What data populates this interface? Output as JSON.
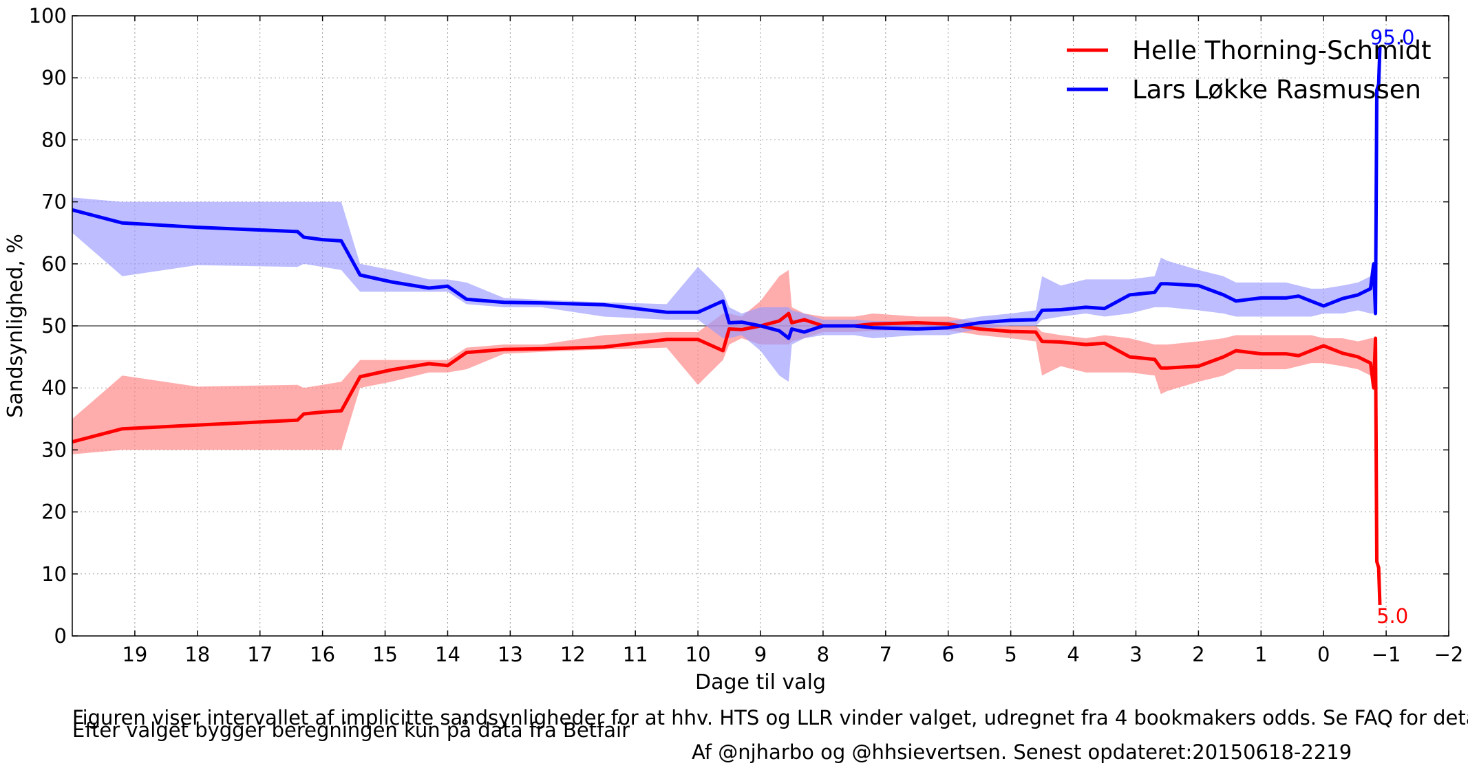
{
  "chart_data": {
    "type": "line",
    "title": "",
    "xlabel": "Dage til valg",
    "ylabel": "Sandsynlighed, %",
    "xlim": [
      20,
      -2
    ],
    "ylim": [
      0,
      100
    ],
    "x_inverted": true,
    "x_ticks": [
      19,
      18,
      17,
      16,
      15,
      14,
      13,
      12,
      11,
      10,
      9,
      8,
      7,
      6,
      5,
      4,
      3,
      2,
      1,
      0,
      -1,
      -2
    ],
    "x_tick_labels": [
      "19",
      "18",
      "17",
      "16",
      "15",
      "14",
      "13",
      "12",
      "11",
      "10",
      "9",
      "8",
      "7",
      "6",
      "5",
      "4",
      "3",
      "2",
      "1",
      "0",
      "−1",
      "−2"
    ],
    "y_ticks": [
      0,
      10,
      20,
      30,
      40,
      50,
      60,
      70,
      80,
      90,
      100
    ],
    "y_tick_labels": [
      "0",
      "10",
      "20",
      "30",
      "40",
      "50",
      "60",
      "70",
      "80",
      "90",
      "100"
    ],
    "grid": true,
    "reference_line": 50,
    "legend_position": "top-right",
    "series": [
      {
        "name": "Helle Thorning-Schmidt",
        "color": "#ff0000",
        "band_color": "#ff8080",
        "x": [
          20,
          19.2,
          18,
          16.4,
          16.3,
          16.0,
          15.7,
          15.4,
          14.9,
          14.3,
          14.0,
          13.7,
          13.1,
          12.5,
          11.5,
          10.5,
          10.0,
          9.6,
          9.5,
          9.3,
          9.0,
          8.7,
          8.55,
          8.5,
          8.3,
          8.0,
          7.5,
          7.2,
          6.5,
          6.0,
          5.5,
          5.0,
          4.6,
          4.5,
          4.2,
          3.8,
          3.5,
          3.1,
          2.7,
          2.6,
          2.5,
          2.0,
          1.6,
          1.4,
          1.0,
          0.6,
          0.4,
          0.2,
          0.0,
          -0.3,
          -0.55,
          -0.75,
          -0.8,
          -0.83,
          -0.85,
          -0.88,
          -0.9
        ],
        "values": [
          31.3,
          33.4,
          34.0,
          34.8,
          35.8,
          36.1,
          36.3,
          41.8,
          42.9,
          43.9,
          43.6,
          45.7,
          46.2,
          46.3,
          46.6,
          47.8,
          47.8,
          46.0,
          49.5,
          49.4,
          50.0,
          50.8,
          52.0,
          50.5,
          51.0,
          50.0,
          50.0,
          50.3,
          50.5,
          50.3,
          49.5,
          49.1,
          49.0,
          47.5,
          47.4,
          47.0,
          47.2,
          45.0,
          44.6,
          43.2,
          43.2,
          43.5,
          45.0,
          46.0,
          45.5,
          45.5,
          45.2,
          46.0,
          46.8,
          45.6,
          45.0,
          44.0,
          40.0,
          48.0,
          12.0,
          11.0,
          5.0
        ],
        "band_low": [
          29.3,
          30.0,
          30.0,
          30.0,
          30.0,
          30.0,
          30.0,
          40.0,
          41.0,
          42.5,
          42.5,
          43.0,
          45.5,
          45.8,
          46.2,
          46.5,
          40.5,
          44.5,
          47.0,
          48.0,
          47.0,
          47.0,
          47.0,
          47.5,
          48.0,
          49.0,
          49.0,
          49.2,
          49.3,
          49.3,
          48.5,
          48.0,
          47.5,
          42.0,
          43.5,
          42.5,
          42.5,
          42.5,
          42.0,
          39.0,
          39.5,
          41.0,
          42.0,
          43.0,
          43.0,
          43.0,
          43.5,
          44.0,
          44.0,
          43.5,
          43.0,
          42.0,
          40.0,
          40.0,
          12.0,
          11.0,
          5.0
        ],
        "band_high": [
          35.0,
          42.0,
          40.2,
          40.5,
          40.0,
          40.5,
          41.0,
          44.5,
          44.5,
          44.5,
          44.5,
          46.5,
          47.0,
          47.0,
          48.5,
          49.0,
          49.0,
          52.0,
          52.0,
          51.5,
          54.0,
          58.0,
          59.0,
          53.0,
          52.0,
          51.5,
          51.5,
          52.0,
          51.5,
          51.5,
          50.5,
          50.0,
          50.0,
          49.0,
          48.5,
          48.0,
          48.5,
          48.0,
          47.0,
          47.0,
          47.0,
          47.5,
          48.0,
          48.5,
          48.5,
          48.5,
          48.5,
          48.5,
          48.0,
          48.0,
          47.5,
          48.0,
          48.0,
          48.0,
          12.0,
          11.0,
          5.0
        ]
      },
      {
        "name": "Lars Løkke Rasmussen",
        "color": "#0000ff",
        "band_color": "#9999ff",
        "x": [
          20,
          19.2,
          18,
          16.4,
          16.3,
          16.0,
          15.7,
          15.4,
          14.9,
          14.3,
          14.0,
          13.7,
          13.1,
          12.5,
          11.5,
          10.5,
          10.0,
          9.6,
          9.5,
          9.3,
          9.0,
          8.7,
          8.55,
          8.5,
          8.3,
          8.0,
          7.5,
          7.2,
          6.5,
          6.0,
          5.5,
          5.0,
          4.6,
          4.5,
          4.2,
          3.8,
          3.5,
          3.1,
          2.7,
          2.6,
          2.5,
          2.0,
          1.6,
          1.4,
          1.0,
          0.6,
          0.4,
          0.2,
          0.0,
          -0.3,
          -0.55,
          -0.75,
          -0.8,
          -0.83,
          -0.85,
          -0.88,
          -0.9
        ],
        "values": [
          68.7,
          66.6,
          65.9,
          65.2,
          64.3,
          63.9,
          63.7,
          58.2,
          57.1,
          56.1,
          56.4,
          54.3,
          53.8,
          53.7,
          53.4,
          52.2,
          52.2,
          54.0,
          50.5,
          50.6,
          50.0,
          49.2,
          48.0,
          49.5,
          49.0,
          50.0,
          50.0,
          49.7,
          49.5,
          49.7,
          50.5,
          50.9,
          51.0,
          52.5,
          52.6,
          53.0,
          52.8,
          55.0,
          55.4,
          56.8,
          56.8,
          56.5,
          55.0,
          54.0,
          54.5,
          54.5,
          54.8,
          54.0,
          53.2,
          54.4,
          55.0,
          56.0,
          60.0,
          52.0,
          88.0,
          89.0,
          95.0
        ],
        "band_low": [
          65.0,
          58.0,
          59.8,
          59.5,
          60.0,
          59.5,
          59.0,
          55.5,
          55.5,
          55.5,
          55.5,
          53.5,
          53.0,
          53.0,
          51.5,
          51.0,
          51.0,
          48.0,
          48.0,
          48.5,
          46.0,
          42.0,
          41.0,
          47.0,
          48.0,
          48.5,
          48.5,
          48.0,
          48.5,
          48.5,
          49.5,
          50.0,
          50.0,
          51.0,
          51.5,
          52.0,
          51.5,
          52.0,
          53.0,
          53.0,
          53.0,
          52.5,
          52.0,
          51.5,
          51.5,
          51.5,
          51.5,
          51.5,
          52.0,
          52.0,
          52.5,
          52.0,
          52.0,
          52.0,
          88.0,
          89.0,
          95.0
        ],
        "band_high": [
          70.7,
          70.0,
          70.0,
          70.0,
          70.0,
          70.0,
          70.0,
          60.0,
          59.0,
          57.5,
          57.5,
          57.0,
          54.5,
          54.2,
          53.8,
          53.5,
          59.5,
          55.5,
          53.0,
          52.0,
          53.0,
          53.0,
          53.0,
          52.5,
          52.0,
          51.0,
          51.0,
          50.8,
          50.7,
          50.7,
          51.5,
          52.0,
          52.5,
          58.0,
          56.5,
          57.5,
          57.5,
          57.5,
          58.0,
          61.0,
          60.5,
          59.0,
          58.0,
          57.0,
          57.0,
          57.0,
          56.5,
          56.0,
          56.0,
          56.5,
          57.0,
          58.0,
          60.0,
          60.0,
          88.0,
          89.0,
          95.0
        ]
      }
    ],
    "annotations": [
      {
        "text": "95.0",
        "x": -1.1,
        "y": 96.3,
        "color": "#0000ff"
      },
      {
        "text": "5.0",
        "x": -1.1,
        "y": 3.0,
        "color": "#ff0000"
      }
    ],
    "captions": [
      "Figuren viser intervallet af implicitte sandsynligheder for at hhv. HTS og LLR vinder valget, udregnet fra 4 bookmakers odds. Se FAQ for detaljer.",
      "Efter valget bygger beregningen kun på data fra Betfair"
    ],
    "credit": "Af @njharbo og @hhsievertsen. Senest opdateret:20150618-2219"
  }
}
